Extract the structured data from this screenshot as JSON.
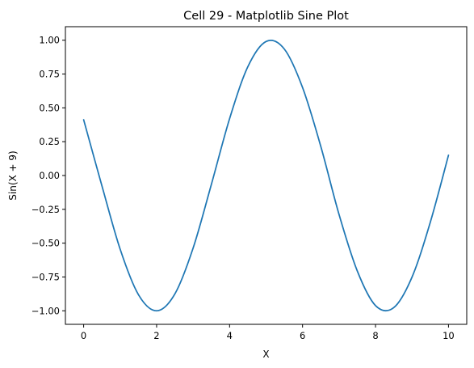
{
  "chart_data": {
    "type": "line",
    "title": "Cell 29 - Matplotlib Sine Plot",
    "xlabel": "X",
    "ylabel": "Sin(X + 9)",
    "xlim": [
      -0.5,
      10.5
    ],
    "ylim": [
      -1.1,
      1.1
    ],
    "grid": false,
    "legend": "none",
    "x_ticks": [
      0,
      2,
      4,
      6,
      8,
      10
    ],
    "x_tick_labels": [
      "0",
      "2",
      "4",
      "6",
      "8",
      "10"
    ],
    "y_ticks": [
      -1.0,
      -0.75,
      -0.5,
      -0.25,
      0.0,
      0.25,
      0.5,
      0.75,
      1.0
    ],
    "y_tick_labels": [
      "−1.00",
      "−0.75",
      "−0.50",
      "−0.25",
      "0.00",
      "0.25",
      "0.50",
      "0.75",
      "1.00"
    ],
    "series": [
      {
        "color": "#1f77b4",
        "x": [
          0,
          0.5,
          1,
          1.5,
          2,
          2.5,
          3,
          3.5,
          4,
          4.5,
          5,
          5.5,
          6,
          6.5,
          7,
          7.5,
          8,
          8.5,
          9,
          9.5,
          10
        ],
        "y": [
          0.4121,
          -0.0752,
          -0.544,
          -0.8797,
          -0.9999,
          -0.8755,
          -0.5366,
          -0.0663,
          0.4202,
          0.8038,
          0.9906,
          0.9349,
          0.6503,
          0.2151,
          -0.2879,
          -0.7055,
          -0.9614,
          -0.9766,
          -0.751,
          -0.3466,
          0.1499
        ]
      }
    ]
  }
}
